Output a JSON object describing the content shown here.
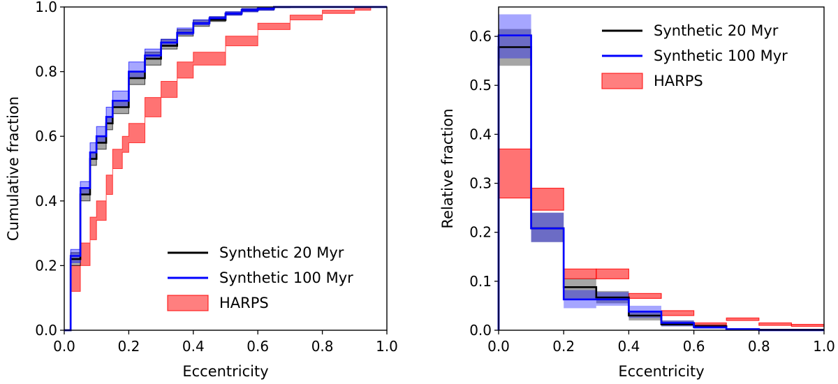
{
  "chart_data": [
    {
      "type": "line",
      "subtype": "cumulative-step",
      "xlabel": "Eccentricity",
      "ylabel": "Cumulative fraction",
      "xlim": [
        0,
        1
      ],
      "ylim": [
        0,
        1
      ],
      "xticks": [
        0,
        0.2,
        0.4,
        0.6,
        0.8,
        1.0
      ],
      "xtick_labels": [
        "0.0",
        "0.2",
        "0.4",
        "0.6",
        "0.8",
        "1.0"
      ],
      "yticks": [
        0,
        0.2,
        0.4,
        0.6,
        0.8,
        1.0
      ],
      "ytick_labels": [
        "0.0",
        "0.2",
        "0.4",
        "0.6",
        "0.8",
        "1.0"
      ],
      "legend_position": "lower-right",
      "legend": [
        {
          "label": "Synthetic 20 Myr",
          "kind": "line",
          "color": "#000000"
        },
        {
          "label": "Synthetic 100 Myr",
          "kind": "line",
          "color": "#0000ff"
        },
        {
          "label": "HARPS",
          "kind": "band",
          "color": "#ff0000"
        }
      ],
      "series": [
        {
          "name": "Synthetic 20 Myr",
          "color": "#000000",
          "x": [
            0,
            0.02,
            0.05,
            0.08,
            0.1,
            0.13,
            0.15,
            0.2,
            0.25,
            0.3,
            0.35,
            0.4,
            0.45,
            0.5,
            0.55,
            0.6,
            0.65,
            0.7
          ],
          "y": [
            0,
            0.22,
            0.42,
            0.53,
            0.58,
            0.64,
            0.69,
            0.78,
            0.84,
            0.88,
            0.92,
            0.95,
            0.96,
            0.98,
            0.99,
            0.995,
            1.0,
            1.0
          ],
          "band_low": [
            0,
            0.2,
            0.4,
            0.51,
            0.56,
            0.62,
            0.67,
            0.76,
            0.82,
            0.87,
            0.91,
            0.94,
            0.955,
            0.975,
            0.985,
            0.99,
            0.998,
            1.0
          ],
          "band_high": [
            0,
            0.24,
            0.44,
            0.55,
            0.6,
            0.66,
            0.71,
            0.8,
            0.86,
            0.9,
            0.93,
            0.96,
            0.97,
            0.985,
            0.995,
            1.0,
            1.0,
            1.0
          ]
        },
        {
          "name": "Synthetic 100 Myr",
          "color": "#0000ff",
          "x": [
            0,
            0.02,
            0.05,
            0.08,
            0.1,
            0.13,
            0.15,
            0.2,
            0.25,
            0.3,
            0.35,
            0.4,
            0.45,
            0.5,
            0.55,
            0.6,
            0.65,
            0.7
          ],
          "y": [
            0,
            0.23,
            0.44,
            0.55,
            0.6,
            0.66,
            0.71,
            0.8,
            0.85,
            0.89,
            0.92,
            0.95,
            0.965,
            0.98,
            0.99,
            0.995,
            1.0,
            1.0
          ],
          "band_low": [
            0,
            0.21,
            0.42,
            0.53,
            0.58,
            0.64,
            0.69,
            0.78,
            0.84,
            0.88,
            0.915,
            0.945,
            0.96,
            0.975,
            0.985,
            0.99,
            0.998,
            1.0
          ],
          "band_high": [
            0,
            0.25,
            0.46,
            0.58,
            0.63,
            0.69,
            0.74,
            0.83,
            0.87,
            0.9,
            0.935,
            0.96,
            0.97,
            0.985,
            0.995,
            1.0,
            1.0,
            1.0
          ]
        },
        {
          "name": "HARPS",
          "color": "#ff0000",
          "x": [
            0,
            0.02,
            0.05,
            0.08,
            0.1,
            0.13,
            0.15,
            0.18,
            0.2,
            0.25,
            0.3,
            0.35,
            0.4,
            0.5,
            0.6,
            0.7,
            0.8,
            0.9,
            0.95,
            1.0
          ],
          "band_low": [
            0,
            0.12,
            0.2,
            0.28,
            0.34,
            0.42,
            0.5,
            0.55,
            0.58,
            0.66,
            0.72,
            0.78,
            0.82,
            0.88,
            0.93,
            0.96,
            0.98,
            0.99,
            1.0,
            1.0
          ],
          "band_high": [
            0,
            0.2,
            0.27,
            0.35,
            0.4,
            0.48,
            0.56,
            0.6,
            0.64,
            0.72,
            0.77,
            0.83,
            0.86,
            0.91,
            0.95,
            0.975,
            0.99,
            1.0,
            1.0,
            1.0
          ]
        }
      ]
    },
    {
      "type": "bar",
      "subtype": "step-histogram",
      "xlabel": "Eccentricity",
      "ylabel": "Relative fraction",
      "xlim": [
        0,
        1
      ],
      "ylim": [
        0,
        0.66
      ],
      "xticks": [
        0,
        0.2,
        0.4,
        0.6,
        0.8,
        1.0
      ],
      "xtick_labels": [
        "0.0",
        "0.2",
        "0.4",
        "0.6",
        "0.8",
        "1.0"
      ],
      "yticks": [
        0,
        0.1,
        0.2,
        0.3,
        0.4,
        0.5,
        0.6
      ],
      "ytick_labels": [
        "0.0",
        "0.1",
        "0.2",
        "0.3",
        "0.4",
        "0.5",
        "0.6"
      ],
      "legend_position": "upper-right",
      "legend": [
        {
          "label": "Synthetic 20 Myr",
          "kind": "line",
          "color": "#000000"
        },
        {
          "label": "Synthetic 100 Myr",
          "kind": "line",
          "color": "#0000ff"
        },
        {
          "label": "HARPS",
          "kind": "band",
          "color": "#ff0000"
        }
      ],
      "bin_edges": [
        0,
        0.1,
        0.2,
        0.3,
        0.4,
        0.5,
        0.6,
        0.7,
        0.8,
        0.9,
        1.0
      ],
      "series": [
        {
          "name": "HARPS",
          "color": "#ff0000",
          "low": [
            0.27,
            0.245,
            0.105,
            0.105,
            0.065,
            0.03,
            0.01,
            0.02,
            0.01,
            0.008
          ],
          "high": [
            0.37,
            0.29,
            0.125,
            0.125,
            0.075,
            0.04,
            0.015,
            0.025,
            0.015,
            0.012
          ]
        },
        {
          "name": "Synthetic 20 Myr",
          "color": "#000000",
          "values": [
            0.578,
            0.208,
            0.088,
            0.067,
            0.03,
            0.012,
            0.008,
            0.002,
            0.001,
            0.001
          ],
          "low": [
            0.54,
            0.18,
            0.065,
            0.055,
            0.02,
            0.008,
            0.004,
            0.0,
            0.0,
            0.0
          ],
          "high": [
            0.615,
            0.24,
            0.105,
            0.08,
            0.04,
            0.02,
            0.012,
            0.004,
            0.002,
            0.002
          ]
        },
        {
          "name": "Synthetic 100 Myr",
          "color": "#0000ff",
          "values": [
            0.602,
            0.208,
            0.063,
            0.063,
            0.038,
            0.015,
            0.006,
            0.002,
            0.0,
            0.0
          ],
          "low": [
            0.555,
            0.18,
            0.045,
            0.05,
            0.025,
            0.008,
            0.003,
            0.0,
            0.0,
            0.0
          ],
          "high": [
            0.645,
            0.24,
            0.082,
            0.078,
            0.05,
            0.02,
            0.01,
            0.004,
            0.001,
            0.001
          ]
        }
      ]
    }
  ]
}
